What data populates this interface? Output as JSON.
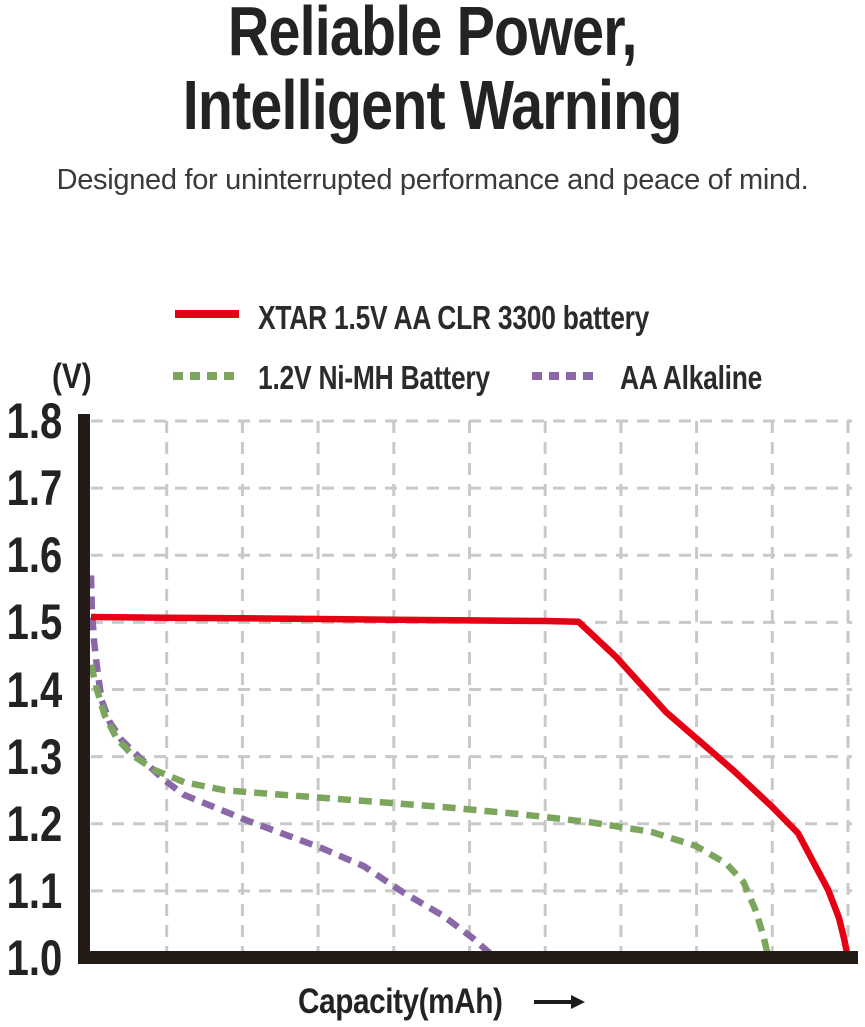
{
  "header": {
    "title_line1": "Reliable Power,",
    "title_line2": "Intelligent Warning",
    "subtitle": "Designed for uninterrupted performance and peace of mind."
  },
  "legend": {
    "items": [
      {
        "label": "XTAR 1.5V AA CLR 3300 battery",
        "color": "#e60014",
        "style": "solid"
      },
      {
        "label": "1.2V Ni-MH Battery",
        "color": "#7ca55e",
        "style": "dashed"
      },
      {
        "label": "AA Alkaline",
        "color": "#8a68a8",
        "style": "dashed"
      }
    ]
  },
  "chart_data": {
    "type": "line",
    "title": "",
    "ylabel": "(V)",
    "xlabel": "Capacity(mAh)",
    "ylim": [
      1.0,
      1.8
    ],
    "yticks": [
      "1.8",
      "1.7",
      "1.6",
      "1.5",
      "1.4",
      "1.3",
      "1.2",
      "1.1",
      "1.0"
    ],
    "x_range_units": [
      0,
      10
    ],
    "x_tick_labels": [],
    "grid": "dashed",
    "grid_color": "#c9c9c9",
    "axis_color": "#241b16",
    "legend_position": "top",
    "series": [
      {
        "name": "XTAR 1.5V AA CLR 3300 battery",
        "color": "#e60014",
        "style": "solid",
        "points": [
          [
            0,
            1.508
          ],
          [
            1,
            1.507
          ],
          [
            2,
            1.506
          ],
          [
            3,
            1.505
          ],
          [
            4,
            1.504
          ],
          [
            5,
            1.503
          ],
          [
            6,
            1.502
          ],
          [
            6.44,
            1.501
          ],
          [
            6.94,
            1.448
          ],
          [
            7.6,
            1.366
          ],
          [
            8.03,
            1.324
          ],
          [
            8.48,
            1.28
          ],
          [
            9.0,
            1.225
          ],
          [
            9.34,
            1.186
          ],
          [
            9.74,
            1.101
          ],
          [
            9.88,
            1.06
          ],
          [
            9.95,
            1.028
          ],
          [
            10.0,
            1.0
          ]
        ]
      },
      {
        "name": "1.2V Ni-MH Battery",
        "color": "#7ca55e",
        "style": "dashed",
        "points": [
          [
            0,
            1.437
          ],
          [
            0.08,
            1.399
          ],
          [
            0.18,
            1.362
          ],
          [
            0.34,
            1.327
          ],
          [
            0.55,
            1.302
          ],
          [
            0.84,
            1.28
          ],
          [
            1.23,
            1.262
          ],
          [
            1.76,
            1.25
          ],
          [
            2.55,
            1.243
          ],
          [
            3.6,
            1.234
          ],
          [
            4.65,
            1.225
          ],
          [
            5.7,
            1.214
          ],
          [
            6.61,
            1.202
          ],
          [
            7.4,
            1.188
          ],
          [
            7.99,
            1.167
          ],
          [
            8.39,
            1.141
          ],
          [
            8.62,
            1.113
          ],
          [
            8.78,
            1.071
          ],
          [
            8.88,
            1.034
          ],
          [
            8.95,
            1.0
          ]
        ]
      },
      {
        "name": "AA Alkaline",
        "color": "#8a68a8",
        "style": "dashed",
        "points": [
          [
            0,
            1.57
          ],
          [
            0.01,
            1.521
          ],
          [
            0.04,
            1.473
          ],
          [
            0.08,
            1.432
          ],
          [
            0.14,
            1.384
          ],
          [
            0.25,
            1.351
          ],
          [
            0.41,
            1.324
          ],
          [
            0.64,
            1.299
          ],
          [
            0.97,
            1.265
          ],
          [
            1.23,
            1.243
          ],
          [
            2.06,
            1.205
          ],
          [
            3.04,
            1.164
          ],
          [
            3.6,
            1.137
          ],
          [
            4.12,
            1.098
          ],
          [
            4.65,
            1.063
          ],
          [
            5.04,
            1.03
          ],
          [
            5.34,
            1.0
          ]
        ]
      }
    ]
  }
}
